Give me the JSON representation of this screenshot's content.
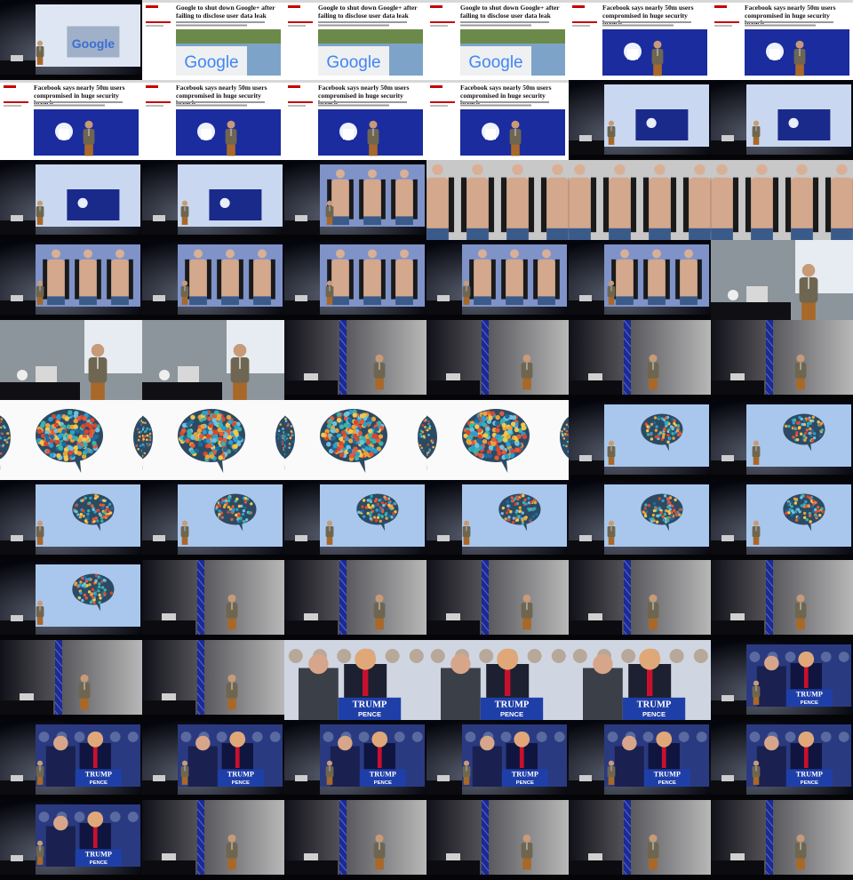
{
  "article_google": {
    "headline": "Google to shut down Google+ after failing to disclose user data leak",
    "logo": "Google"
  },
  "article_facebook": {
    "headline": "Facebook says nearly 50m users compromised in huge security breach"
  },
  "rally_sign": {
    "line1": "TRUMP",
    "line2": "PENCE"
  }
}
